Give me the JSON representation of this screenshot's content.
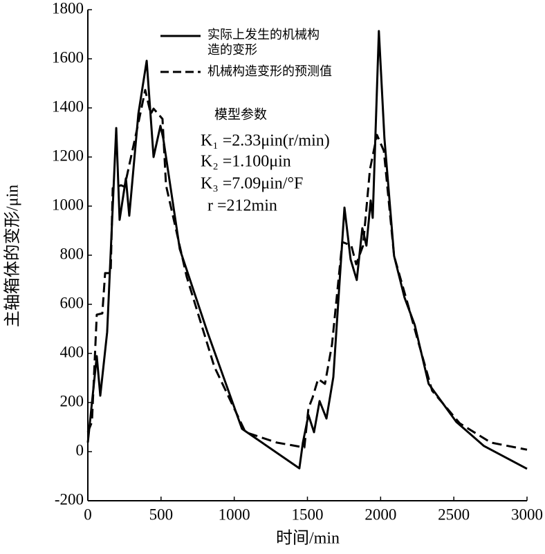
{
  "chart_data": {
    "type": "line",
    "x_label": "时间/min",
    "y_label": "主轴箱体的变形/μin",
    "xlim": [
      0,
      3000
    ],
    "xticks": [
      0,
      500,
      1000,
      1500,
      2000,
      2500,
      3000
    ],
    "ylim": [
      -200,
      1800
    ],
    "yticks": [
      -200,
      0,
      200,
      400,
      600,
      800,
      1000,
      1200,
      1400,
      1600,
      1800
    ],
    "series": [
      {
        "name": "实际上发生的机械构造的变形",
        "color": "#000000",
        "dash": "solid",
        "x": [
          0,
          61,
          85,
          132,
          194,
          217,
          260,
          283,
          345,
          402,
          449,
          496,
          515,
          628,
          817,
          1053,
          1445,
          1469,
          1507,
          1545,
          1583,
          1630,
          1677,
          1753,
          1795,
          1837,
          1875,
          1903,
          1932,
          1946,
          1988,
          2026,
          2092,
          2163,
          2233,
          2328,
          2517,
          2706,
          3000
        ],
        "values": [
          37,
          389,
          228,
          487,
          1318,
          944,
          1113,
          961,
          1375,
          1592,
          1200,
          1327,
          1276,
          825,
          487,
          93,
          -68,
          37,
          149,
          79,
          206,
          135,
          304,
          994,
          783,
          699,
          910,
          839,
          1023,
          952,
          1713,
          1276,
          797,
          628,
          516,
          276,
          121,
          23,
          -70
        ]
      },
      {
        "name": "机械构造变形的预测值",
        "color": "#000000",
        "dash": "dashed",
        "x": [
          0,
          28,
          61,
          99,
          118,
          156,
          170,
          227,
          251,
          345,
          392,
          430,
          449,
          510,
          534,
          675,
          864,
          1077,
          1290,
          1479,
          1507,
          1535,
          1573,
          1620,
          1668,
          1738,
          1800,
          1833,
          1880,
          1927,
          1975,
          2022,
          2092,
          2186,
          2258,
          2352,
          2541,
          2753,
          3000
        ],
        "values": [
          79,
          121,
          558,
          563,
          727,
          727,
          1073,
          1085,
          1079,
          1338,
          1473,
          1375,
          1397,
          1355,
          1085,
          713,
          346,
          79,
          37,
          17,
          177,
          220,
          296,
          276,
          437,
          854,
          839,
          763,
          839,
          1149,
          1290,
          1225,
          797,
          600,
          445,
          248,
          115,
          37,
          8
        ]
      }
    ],
    "annotation_title": "模型参数",
    "annotations": [
      "K₁ =2.33μin(r/min)",
      "K₂ =1.100μin",
      "K₃ =7.09μin/°F",
      "r =212min"
    ]
  }
}
